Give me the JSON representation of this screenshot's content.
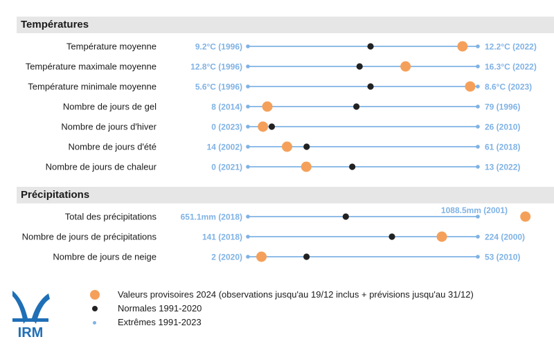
{
  "sections": [
    {
      "title": "Températures"
    },
    {
      "title": "Précipitations"
    }
  ],
  "chart_data": {
    "type": "dot-range",
    "title": "",
    "series": [
      {
        "name": "Valeurs provisoires 2024 (observations jusqu'au 19/12 inclus + prévisions jusqu'au 31/12)",
        "color": "#f5a05a"
      },
      {
        "name": "Normales 1991-2020",
        "color": "#222222"
      },
      {
        "name": "Extrêmes 1991-2023",
        "color": "#7fb2e5"
      }
    ],
    "rows": [
      {
        "section": 0,
        "label": "Température moyenne",
        "min": 9.2,
        "min_label": "9.2°C (1996)",
        "max": 12.2,
        "max_label": "12.2°C (2022)",
        "normal": 10.8,
        "value_2024": 12.0
      },
      {
        "section": 0,
        "label": "Température maximale moyenne",
        "min": 12.8,
        "min_label": "12.8°C (1996)",
        "max": 16.3,
        "max_label": "16.3°C (2022)",
        "normal": 14.5,
        "value_2024": 15.2
      },
      {
        "section": 0,
        "label": "Température minimale moyenne",
        "min": 5.6,
        "min_label": "5.6°C (1996)",
        "max": 8.6,
        "max_label": "8.6°C (2023)",
        "normal": 7.2,
        "value_2024": 8.5
      },
      {
        "section": 0,
        "label": "Nombre de jours de gel",
        "min": 8,
        "min_label": "8 (2014)",
        "max": 79,
        "max_label": "79 (1996)",
        "normal": 41.5,
        "value_2024": 14
      },
      {
        "section": 0,
        "label": "Nombre de jours d'hiver",
        "min": 0,
        "min_label": "0 (2023)",
        "max": 26,
        "max_label": "26 (2010)",
        "normal": 2.7,
        "value_2024": 1.7
      },
      {
        "section": 0,
        "label": "Nombre de jours d'été",
        "min": 14,
        "min_label": "14 (2002)",
        "max": 61,
        "max_label": "61 (2018)",
        "normal": 26,
        "value_2024": 22
      },
      {
        "section": 0,
        "label": "Nombre de jours de chaleur",
        "min": 0,
        "min_label": "0 (2021)",
        "max": 13,
        "max_label": "13 (2022)",
        "normal": 5.9,
        "value_2024": 3.3
      },
      {
        "section": 1,
        "label": "Total des précipitations",
        "min": 651.1,
        "min_label": "651.1mm (2018)",
        "max": 1088.5,
        "max_label": "1088.5mm (2001)",
        "normal": 837.3,
        "value_2024": 1179
      },
      {
        "section": 1,
        "label": "Nombre de jours de précipitations",
        "min": 141,
        "min_label": "141 (2018)",
        "max": 224,
        "max_label": "224 (2000)",
        "normal": 193,
        "value_2024": 211
      },
      {
        "section": 1,
        "label": "Nombre de jours de neige",
        "min": 2,
        "min_label": "2 (2020)",
        "max": 53,
        "max_label": "53 (2010)",
        "normal": 15,
        "value_2024": 5
      }
    ]
  },
  "logo": {
    "text": "IRM"
  }
}
